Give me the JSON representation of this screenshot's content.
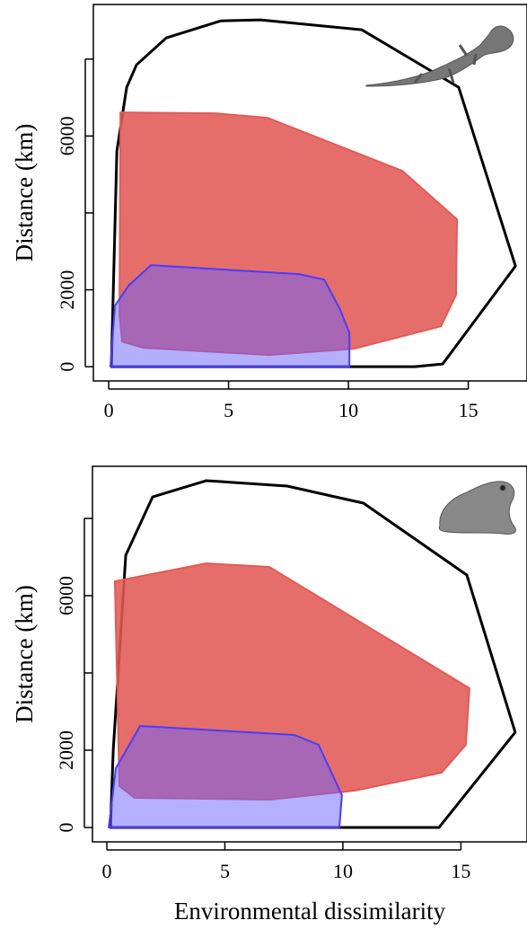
{
  "chart_data": [
    {
      "type": "polygon",
      "ylabel": "Distance (km)",
      "xlim": [
        -0.64,
        17.45
      ],
      "ylim": [
        -370,
        9420
      ],
      "xticks": [
        0,
        5,
        10,
        15
      ],
      "yticks": [
        0,
        2000,
        {
          "value": 4000,
          "label": null
        },
        6000,
        {
          "value": 8000,
          "label": null
        }
      ],
      "series": [
        {
          "color": "#000000",
          "fill": "none",
          "x": [
            0.11,
            0.34,
            0.75,
            1.16,
            2.4,
            4.68,
            6.33,
            10.56,
            14.6,
            16.97,
            13.93,
            12.77
          ],
          "values": [
            0,
            5607,
            7266,
            7850,
            8551,
            8995,
            9019,
            8762,
            7266,
            2617,
            70,
            0
          ]
        },
        {
          "color": "#e25a55",
          "fill": "#e25a55",
          "opacity": 0.88,
          "x": [
            0.49,
            4.46,
            6.63,
            12.25,
            14.53,
            14.49,
            13.86,
            10.22,
            6.7,
            1.46,
            0.56,
            0.45
          ],
          "values": [
            6612,
            6589,
            6472,
            5093,
            3832,
            1869,
            1051,
            467,
            304,
            491,
            654,
            1355
          ]
        },
        {
          "color": "#4a3cff",
          "fill": "#6a60ff",
          "opacity": 0.5,
          "x": [
            0.07,
            10.04,
            10.04,
            9.63,
            8.99,
            7.94,
            1.76,
            0.82,
            0.26
          ],
          "values": [
            0,
            0,
            888,
            1519,
            2266,
            2407,
            2640,
            2103,
            1589
          ]
        }
      ]
    },
    {
      "type": "polygon",
      "ylabel": "Distance (km)",
      "xlabel": "Environmental dissimilarity",
      "xlim": [
        -0.61,
        17.8
      ],
      "ylim": [
        -372,
        9349
      ],
      "xticks": [
        0,
        5,
        10,
        15
      ],
      "yticks": [
        0,
        2000,
        {
          "value": 4000,
          "label": null
        },
        6000,
        {
          "value": 8000,
          "label": null
        }
      ],
      "series": [
        {
          "color": "#000000",
          "fill": "none",
          "x": [
            0.15,
            0.27,
            0.8,
            1.94,
            4.22,
            7.64,
            10.87,
            15.25,
            17.3,
            14.07
          ],
          "values": [
            0,
            2000,
            7047,
            8558,
            8977,
            8837,
            8395,
            6535,
            2465,
            0
          ]
        },
        {
          "color": "#e25a55",
          "fill": "#e25a55",
          "opacity": 0.88,
          "x": [
            0.34,
            4.22,
            6.88,
            15.36,
            15.21,
            14.18,
            10.49,
            6.88,
            1.18,
            0.53
          ],
          "values": [
            6372,
            6837,
            6744,
            3605,
            2140,
            1419,
            953,
            721,
            767,
            1070
          ]
        },
        {
          "color": "#4a3cff",
          "fill": "#6a60ff",
          "opacity": 0.5,
          "x": [
            0.08,
            9.85,
            9.96,
            8.97,
            7.95,
            1.41,
            0.38
          ],
          "values": [
            0,
            0,
            837,
            2140,
            2395,
            2628,
            1535
          ]
        }
      ]
    }
  ]
}
